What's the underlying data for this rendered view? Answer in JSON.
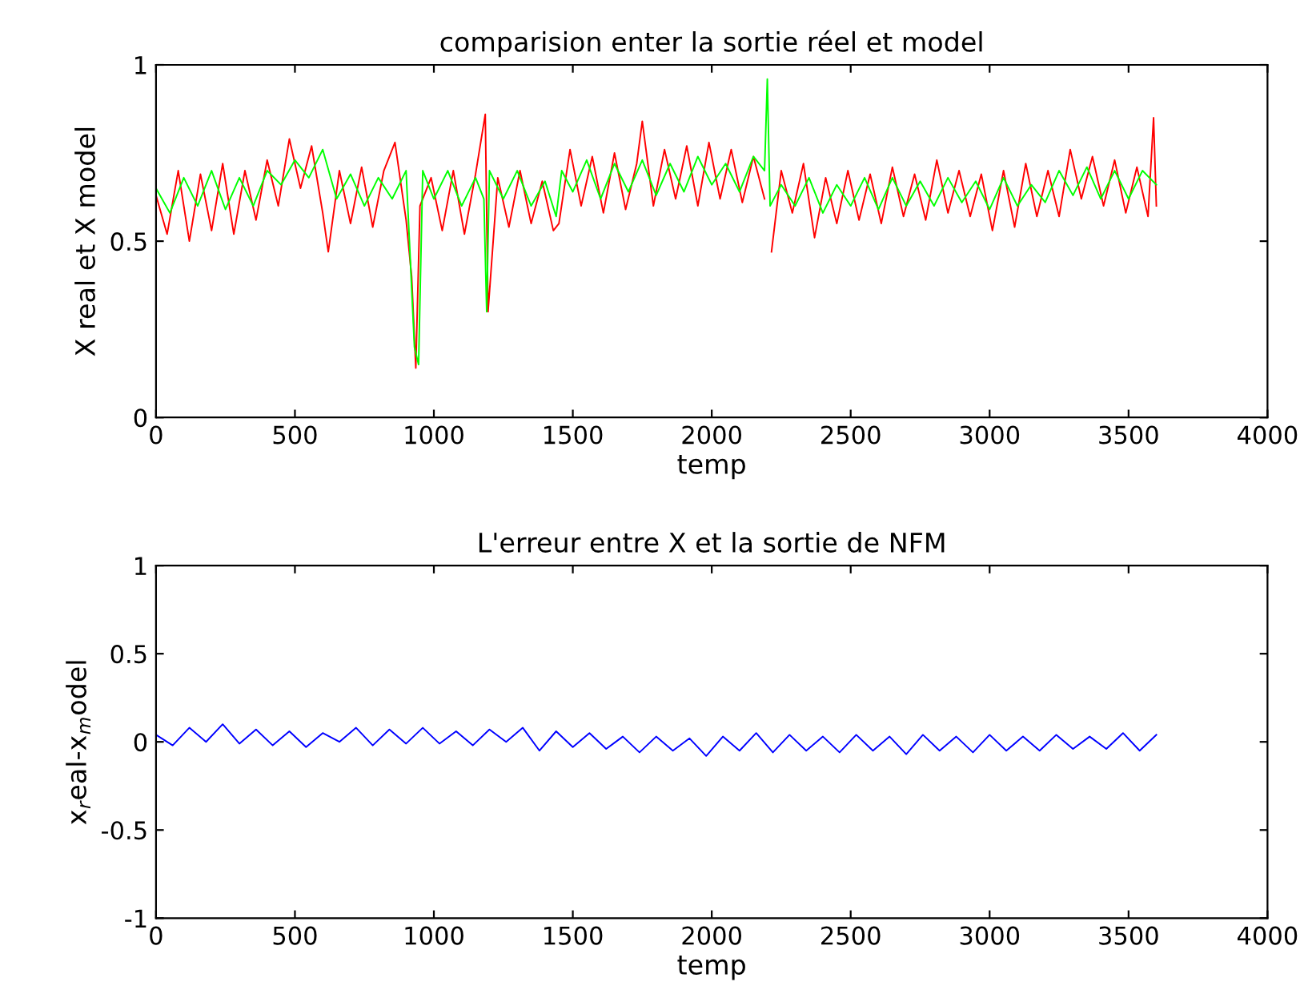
{
  "chart_data": [
    {
      "type": "line",
      "title": "comparision enter la sortie réel et model",
      "xlabel": "temp",
      "ylabel": "X real et X model",
      "xlim": [
        0,
        4000
      ],
      "xticks": [
        0,
        500,
        1000,
        1500,
        2000,
        2500,
        3000,
        3500,
        4000
      ],
      "ylim": [
        0,
        1
      ],
      "yticks": [
        0,
        0.5,
        1
      ],
      "grid": false,
      "series": [
        {
          "color": "#ff0000",
          "x": [
            0,
            40,
            80,
            120,
            160,
            200,
            240,
            280,
            320,
            360,
            400,
            440,
            480,
            520,
            560,
            600,
            620,
            660,
            700,
            740,
            780,
            820,
            860,
            900,
            920,
            935,
            950,
            990,
            1030,
            1070,
            1110,
            1150,
            1185,
            1195,
            1230,
            1270,
            1310,
            1350,
            1390,
            1430,
            1450,
            1490,
            1530,
            1570,
            1610,
            1650,
            1690,
            1730,
            1750,
            1790,
            1830,
            1870,
            1910,
            1950,
            1990,
            2030,
            2070,
            2110,
            2150,
            2190,
            2200,
            2215,
            2250,
            2290,
            2330,
            2370,
            2410,
            2450,
            2490,
            2530,
            2570,
            2610,
            2650,
            2690,
            2730,
            2770,
            2810,
            2850,
            2890,
            2930,
            2970,
            3010,
            3050,
            3090,
            3130,
            3170,
            3210,
            3250,
            3290,
            3330,
            3370,
            3410,
            3450,
            3490,
            3530,
            3570,
            3590,
            3600
          ],
          "values": [
            0.63,
            0.52,
            0.7,
            0.5,
            0.69,
            0.53,
            0.72,
            0.52,
            0.7,
            0.56,
            0.73,
            0.6,
            0.79,
            0.65,
            0.77,
            0.58,
            0.47,
            0.7,
            0.55,
            0.71,
            0.54,
            0.7,
            0.78,
            0.56,
            0.4,
            0.14,
            0.6,
            0.68,
            0.53,
            0.7,
            0.52,
            0.69,
            0.86,
            0.3,
            0.68,
            0.54,
            0.7,
            0.55,
            0.67,
            0.53,
            0.55,
            0.76,
            0.6,
            0.74,
            0.58,
            0.75,
            0.59,
            0.72,
            0.84,
            0.6,
            0.76,
            0.62,
            0.77,
            0.6,
            0.78,
            0.62,
            0.76,
            0.61,
            0.74,
            0.62,
            null,
            0.47,
            0.7,
            0.58,
            0.72,
            0.51,
            0.68,
            0.55,
            0.7,
            0.56,
            0.69,
            0.55,
            0.71,
            0.57,
            0.69,
            0.56,
            0.73,
            0.58,
            0.7,
            0.57,
            0.69,
            0.53,
            0.7,
            0.54,
            0.72,
            0.57,
            0.7,
            0.57,
            0.76,
            0.62,
            0.74,
            0.6,
            0.73,
            0.58,
            0.71,
            0.57,
            0.85,
            0.6
          ]
        },
        {
          "color": "#00ff00",
          "x": [
            0,
            50,
            100,
            150,
            200,
            250,
            300,
            350,
            400,
            450,
            500,
            550,
            600,
            650,
            700,
            750,
            800,
            850,
            900,
            915,
            930,
            945,
            960,
            1000,
            1050,
            1100,
            1150,
            1180,
            1190,
            1200,
            1250,
            1300,
            1350,
            1400,
            1440,
            1460,
            1500,
            1550,
            1600,
            1650,
            1700,
            1750,
            1800,
            1850,
            1900,
            1950,
            2000,
            2050,
            2100,
            2150,
            2190,
            2200,
            2210,
            2250,
            2300,
            2350,
            2400,
            2450,
            2500,
            2550,
            2600,
            2650,
            2700,
            2750,
            2800,
            2850,
            2900,
            2950,
            3000,
            3050,
            3100,
            3150,
            3200,
            3250,
            3300,
            3350,
            3400,
            3450,
            3500,
            3550,
            3600
          ],
          "values": [
            0.65,
            0.58,
            0.68,
            0.6,
            0.7,
            0.59,
            0.68,
            0.6,
            0.7,
            0.66,
            0.73,
            0.68,
            0.76,
            0.62,
            0.69,
            0.6,
            0.68,
            0.62,
            0.7,
            0.45,
            0.2,
            0.15,
            0.7,
            0.62,
            0.7,
            0.6,
            0.68,
            0.62,
            0.3,
            0.7,
            0.62,
            0.7,
            0.6,
            0.67,
            0.57,
            0.7,
            0.64,
            0.73,
            0.62,
            0.72,
            0.64,
            0.73,
            0.63,
            0.72,
            0.64,
            0.74,
            0.66,
            0.72,
            0.64,
            0.74,
            0.7,
            0.96,
            0.6,
            0.66,
            0.6,
            0.68,
            0.58,
            0.66,
            0.6,
            0.68,
            0.59,
            0.68,
            0.6,
            0.67,
            0.6,
            0.68,
            0.61,
            0.67,
            0.59,
            0.68,
            0.6,
            0.66,
            0.61,
            0.7,
            0.63,
            0.71,
            0.62,
            0.7,
            0.62,
            0.7,
            0.66
          ]
        }
      ]
    },
    {
      "type": "line",
      "title": "L'erreur entre X et la sortie de NFM",
      "xlabel": "temp",
      "ylabel": "x$_{r}$eal-x$_{m}$odel",
      "xlim": [
        0,
        4000
      ],
      "xticks": [
        0,
        500,
        1000,
        1500,
        2000,
        2500,
        3000,
        3500,
        4000
      ],
      "ylim": [
        -1,
        1
      ],
      "yticks": [
        -1,
        -0.5,
        0,
        0.5,
        1
      ],
      "grid": false,
      "series": [
        {
          "color": "#0000ff",
          "x": [
            0,
            60,
            120,
            180,
            240,
            300,
            360,
            420,
            480,
            540,
            600,
            660,
            720,
            780,
            840,
            900,
            960,
            1020,
            1080,
            1140,
            1200,
            1260,
            1320,
            1380,
            1440,
            1500,
            1560,
            1620,
            1680,
            1740,
            1800,
            1860,
            1920,
            1980,
            2040,
            2100,
            2160,
            2220,
            2280,
            2340,
            2400,
            2460,
            2520,
            2580,
            2640,
            2700,
            2760,
            2820,
            2880,
            2940,
            3000,
            3060,
            3120,
            3180,
            3240,
            3300,
            3360,
            3420,
            3480,
            3540,
            3600
          ],
          "values": [
            0.04,
            -0.02,
            0.08,
            0.0,
            0.1,
            -0.01,
            0.07,
            -0.02,
            0.06,
            -0.03,
            0.05,
            0.0,
            0.08,
            -0.02,
            0.07,
            -0.01,
            0.08,
            -0.01,
            0.06,
            -0.02,
            0.07,
            0.0,
            0.08,
            -0.05,
            0.06,
            -0.03,
            0.05,
            -0.04,
            0.03,
            -0.06,
            0.03,
            -0.05,
            0.02,
            -0.08,
            0.03,
            -0.05,
            0.05,
            -0.06,
            0.04,
            -0.05,
            0.03,
            -0.06,
            0.04,
            -0.05,
            0.03,
            -0.07,
            0.04,
            -0.05,
            0.03,
            -0.06,
            0.04,
            -0.05,
            0.03,
            -0.05,
            0.04,
            -0.04,
            0.03,
            -0.04,
            0.05,
            -0.05,
            0.04
          ]
        }
      ]
    }
  ]
}
